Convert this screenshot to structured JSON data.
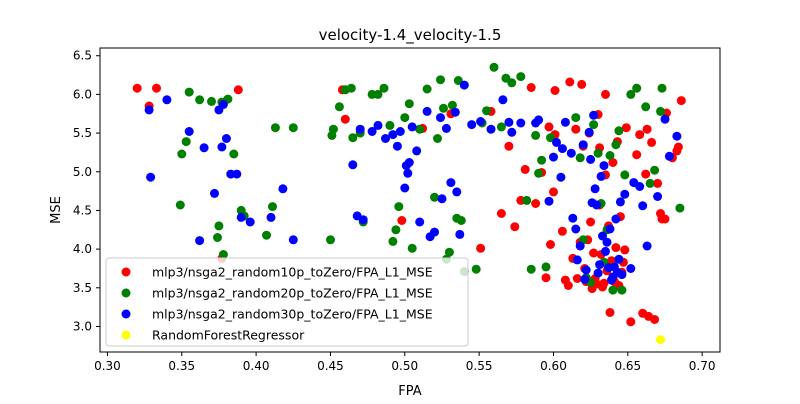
{
  "chart_data": {
    "type": "scatter",
    "title": "velocity-1.4_velocity-1.5",
    "xlabel": "FPA",
    "ylabel": "MSE",
    "xlim": [
      0.295,
      0.712
    ],
    "ylim": [
      2.67,
      6.6
    ],
    "xticks": [
      0.3,
      0.35,
      0.4,
      0.45,
      0.5,
      0.55,
      0.6,
      0.65,
      0.7
    ],
    "xtick_labels": [
      "0.30",
      "0.35",
      "0.40",
      "0.45",
      "0.50",
      "0.55",
      "0.60",
      "0.65",
      "0.70"
    ],
    "yticks": [
      3.0,
      3.5,
      4.0,
      4.5,
      5.0,
      5.5,
      6.0,
      6.5
    ],
    "ytick_labels": [
      "3.0",
      "3.5",
      "4.0",
      "4.5",
      "5.0",
      "5.5",
      "6.0",
      "6.5"
    ],
    "grid": false,
    "legend_position": "lower-left",
    "series": [
      {
        "name": "mlp3/nsga2_random10p_toZero/FPA_L1_MSE",
        "color": "#ff0000",
        "points": [
          [
            0.32,
            6.08
          ],
          [
            0.328,
            5.85
          ],
          [
            0.333,
            6.08
          ],
          [
            0.377,
            3.88
          ],
          [
            0.388,
            6.06
          ],
          [
            0.458,
            6.06
          ],
          [
            0.46,
            5.68
          ],
          [
            0.498,
            4.37
          ],
          [
            0.512,
            5.56
          ],
          [
            0.531,
            5.75
          ],
          [
            0.551,
            4.01
          ],
          [
            0.558,
            5.78
          ],
          [
            0.565,
            4.46
          ],
          [
            0.57,
            5.33
          ],
          [
            0.574,
            4.29
          ],
          [
            0.578,
            4.63
          ],
          [
            0.581,
            5.03
          ],
          [
            0.585,
            6.09
          ],
          [
            0.588,
            4.59
          ],
          [
            0.592,
            4.99
          ],
          [
            0.595,
            3.63
          ],
          [
            0.597,
            5.58
          ],
          [
            0.598,
            4.06
          ],
          [
            0.6,
            4.74
          ],
          [
            0.601,
            6.05
          ],
          [
            0.601,
            5.48
          ],
          [
            0.606,
            4.23
          ],
          [
            0.608,
            3.6
          ],
          [
            0.61,
            3.53
          ],
          [
            0.611,
            6.16
          ],
          [
            0.613,
            3.88
          ],
          [
            0.615,
            5.55
          ],
          [
            0.616,
            3.62
          ],
          [
            0.618,
            4.09
          ],
          [
            0.619,
            6.13
          ],
          [
            0.62,
            5.33
          ],
          [
            0.621,
            3.75
          ],
          [
            0.622,
            3.58
          ],
          [
            0.623,
            4.12
          ],
          [
            0.624,
            5.5
          ],
          [
            0.625,
            4.35
          ],
          [
            0.626,
            3.49
          ],
          [
            0.627,
            3.95
          ],
          [
            0.628,
            3.62
          ],
          [
            0.629,
            3.55
          ],
          [
            0.63,
            5.74
          ],
          [
            0.631,
            5.31
          ],
          [
            0.631,
            4.57
          ],
          [
            0.632,
            3.93
          ],
          [
            0.633,
            3.51
          ],
          [
            0.634,
            3.56
          ],
          [
            0.635,
            6.0
          ],
          [
            0.635,
            4.96
          ],
          [
            0.636,
            3.72
          ],
          [
            0.637,
            4.3
          ],
          [
            0.638,
            3.18
          ],
          [
            0.639,
            3.85
          ],
          [
            0.64,
            5.12
          ],
          [
            0.641,
            3.58
          ],
          [
            0.642,
            4.02
          ],
          [
            0.643,
            5.39
          ],
          [
            0.644,
            3.53
          ],
          [
            0.645,
            4.42
          ],
          [
            0.646,
            3.7
          ],
          [
            0.647,
            3.83
          ],
          [
            0.648,
            3.99
          ],
          [
            0.649,
            5.57
          ],
          [
            0.652,
            3.06
          ],
          [
            0.656,
            5.22
          ],
          [
            0.658,
            5.48
          ],
          [
            0.66,
            3.17
          ],
          [
            0.662,
            4.97
          ],
          [
            0.663,
            5.55
          ],
          [
            0.664,
            3.13
          ],
          [
            0.666,
            5.38
          ],
          [
            0.668,
            3.09
          ],
          [
            0.67,
            4.85
          ],
          [
            0.672,
            4.46
          ],
          [
            0.673,
            4.39
          ],
          [
            0.675,
            4.39
          ],
          [
            0.676,
            5.76
          ],
          [
            0.68,
            5.18
          ],
          [
            0.683,
            5.27
          ],
          [
            0.684,
            5.32
          ],
          [
            0.686,
            5.92
          ]
        ]
      },
      {
        "name": "mlp3/nsga2_random20p_toZero/FPA_L1_MSE",
        "color": "#008000",
        "points": [
          [
            0.349,
            4.57
          ],
          [
            0.35,
            5.23
          ],
          [
            0.353,
            5.39
          ],
          [
            0.355,
            6.03
          ],
          [
            0.362,
            5.93
          ],
          [
            0.37,
            5.91
          ],
          [
            0.374,
            4.15
          ],
          [
            0.375,
            4.3
          ],
          [
            0.377,
            5.9
          ],
          [
            0.378,
            3.93
          ],
          [
            0.381,
            5.94
          ],
          [
            0.385,
            5.23
          ],
          [
            0.39,
            4.5
          ],
          [
            0.392,
            4.43
          ],
          [
            0.407,
            4.18
          ],
          [
            0.411,
            4.55
          ],
          [
            0.413,
            5.57
          ],
          [
            0.425,
            5.57
          ],
          [
            0.45,
            4.12
          ],
          [
            0.451,
            5.47
          ],
          [
            0.452,
            5.55
          ],
          [
            0.456,
            5.84
          ],
          [
            0.46,
            6.06
          ],
          [
            0.464,
            6.08
          ],
          [
            0.465,
            5.44
          ],
          [
            0.47,
            5.5
          ],
          [
            0.472,
            4.35
          ],
          [
            0.478,
            6.0
          ],
          [
            0.482,
            6.0
          ],
          [
            0.486,
            6.08
          ],
          [
            0.49,
            5.6
          ],
          [
            0.492,
            4.1
          ],
          [
            0.494,
            4.25
          ],
          [
            0.496,
            4.55
          ],
          [
            0.5,
            5.7
          ],
          [
            0.503,
            5.88
          ],
          [
            0.505,
            4.01
          ],
          [
            0.51,
            5.55
          ],
          [
            0.515,
            6.07
          ],
          [
            0.52,
            4.67
          ],
          [
            0.522,
            5.43
          ],
          [
            0.524,
            6.19
          ],
          [
            0.526,
            5.82
          ],
          [
            0.528,
            3.87
          ],
          [
            0.53,
            3.96
          ],
          [
            0.532,
            5.86
          ],
          [
            0.535,
            4.4
          ],
          [
            0.536,
            6.18
          ],
          [
            0.538,
            4.37
          ],
          [
            0.54,
            3.71
          ],
          [
            0.548,
            3.74
          ],
          [
            0.552,
            5.63
          ],
          [
            0.555,
            5.79
          ],
          [
            0.56,
            6.35
          ],
          [
            0.565,
            5.58
          ],
          [
            0.568,
            6.21
          ],
          [
            0.572,
            6.15
          ],
          [
            0.578,
            6.23
          ],
          [
            0.582,
            4.63
          ],
          [
            0.585,
            3.74
          ],
          [
            0.588,
            5.47
          ],
          [
            0.59,
            4.98
          ],
          [
            0.592,
            5.15
          ],
          [
            0.595,
            3.77
          ],
          [
            0.598,
            5.44
          ],
          [
            0.615,
            5.7
          ],
          [
            0.618,
            5.18
          ],
          [
            0.62,
            4.12
          ],
          [
            0.622,
            3.63
          ],
          [
            0.625,
            3.57
          ],
          [
            0.627,
            5.61
          ],
          [
            0.63,
            5.24
          ],
          [
            0.632,
            4.59
          ],
          [
            0.634,
            3.83
          ],
          [
            0.636,
            4.25
          ],
          [
            0.638,
            5.21
          ],
          [
            0.64,
            3.47
          ],
          [
            0.642,
            5.35
          ],
          [
            0.644,
            5.53
          ],
          [
            0.646,
            3.47
          ],
          [
            0.648,
            4.96
          ],
          [
            0.652,
            6.0
          ],
          [
            0.656,
            6.08
          ],
          [
            0.662,
            5.84
          ],
          [
            0.665,
            4.85
          ],
          [
            0.668,
            5.02
          ],
          [
            0.672,
            5.78
          ],
          [
            0.673,
            6.08
          ],
          [
            0.685,
            4.53
          ]
        ]
      },
      {
        "name": "mlp3/nsga2_random30p_toZero/FPA_L1_MSE",
        "color": "#0000ff",
        "points": [
          [
            0.328,
            5.8
          ],
          [
            0.329,
            4.93
          ],
          [
            0.34,
            5.93
          ],
          [
            0.355,
            5.52
          ],
          [
            0.362,
            4.11
          ],
          [
            0.365,
            5.31
          ],
          [
            0.372,
            4.72
          ],
          [
            0.375,
            5.8
          ],
          [
            0.377,
            5.32
          ],
          [
            0.378,
            5.87
          ],
          [
            0.38,
            5.43
          ],
          [
            0.383,
            4.97
          ],
          [
            0.387,
            4.97
          ],
          [
            0.39,
            4.41
          ],
          [
            0.396,
            4.35
          ],
          [
            0.418,
            4.78
          ],
          [
            0.41,
            4.41
          ],
          [
            0.425,
            4.12
          ],
          [
            0.465,
            5.09
          ],
          [
            0.468,
            4.43
          ],
          [
            0.472,
            4.38
          ],
          [
            0.47,
            5.55
          ],
          [
            0.478,
            5.52
          ],
          [
            0.482,
            5.6
          ],
          [
            0.487,
            5.43
          ],
          [
            0.492,
            5.48
          ],
          [
            0.495,
            5.33
          ],
          [
            0.497,
            5.52
          ],
          [
            0.5,
            4.79
          ],
          [
            0.501,
            5.08
          ],
          [
            0.502,
            4.98
          ],
          [
            0.503,
            5.12
          ],
          [
            0.505,
            5.58
          ],
          [
            0.508,
            5.27
          ],
          [
            0.51,
            4.35
          ],
          [
            0.515,
            5.78
          ],
          [
            0.517,
            4.16
          ],
          [
            0.52,
            4.22
          ],
          [
            0.524,
            5.7
          ],
          [
            0.525,
            4.65
          ],
          [
            0.528,
            5.56
          ],
          [
            0.531,
            4.86
          ],
          [
            0.534,
            5.77
          ],
          [
            0.535,
            4.74
          ],
          [
            0.537,
            4.19
          ],
          [
            0.54,
            6.12
          ],
          [
            0.545,
            5.61
          ],
          [
            0.551,
            5.65
          ],
          [
            0.558,
            5.55
          ],
          [
            0.566,
            5.93
          ],
          [
            0.57,
            5.64
          ],
          [
            0.572,
            5.51
          ],
          [
            0.578,
            5.63
          ],
          [
            0.588,
            5.63
          ],
          [
            0.59,
            5.67
          ],
          [
            0.597,
            4.62
          ],
          [
            0.6,
            5.19
          ],
          [
            0.602,
            5.38
          ],
          [
            0.605,
            4.93
          ],
          [
            0.606,
            5.3
          ],
          [
            0.608,
            5.64
          ],
          [
            0.612,
            5.24
          ],
          [
            0.613,
            4.4
          ],
          [
            0.615,
            4.26
          ],
          [
            0.616,
            3.86
          ],
          [
            0.618,
            4.04
          ],
          [
            0.62,
            5.35
          ],
          [
            0.621,
            3.61
          ],
          [
            0.622,
            3.73
          ],
          [
            0.624,
            5.51
          ],
          [
            0.625,
            5.16
          ],
          [
            0.626,
            4.6
          ],
          [
            0.627,
            5.73
          ],
          [
            0.628,
            4.78
          ],
          [
            0.629,
            4.57
          ],
          [
            0.63,
            3.69
          ],
          [
            0.631,
            3.8
          ],
          [
            0.632,
            4.94
          ],
          [
            0.633,
            4.17
          ],
          [
            0.634,
            5.08
          ],
          [
            0.635,
            3.97
          ],
          [
            0.636,
            4.09
          ],
          [
            0.637,
            3.76
          ],
          [
            0.638,
            4.26
          ],
          [
            0.639,
            3.6
          ],
          [
            0.64,
            3.64
          ],
          [
            0.641,
            3.77
          ],
          [
            0.642,
            4.39
          ],
          [
            0.643,
            3.7
          ],
          [
            0.644,
            3.87
          ],
          [
            0.645,
            4.61
          ],
          [
            0.646,
            3.67
          ],
          [
            0.648,
            4.71
          ],
          [
            0.652,
            3.75
          ],
          [
            0.654,
            4.86
          ],
          [
            0.658,
            4.81
          ],
          [
            0.66,
            4.56
          ],
          [
            0.663,
            4.04
          ],
          [
            0.67,
            4.68
          ],
          [
            0.675,
            5.68
          ],
          [
            0.678,
            5.2
          ],
          [
            0.683,
            5.46
          ]
        ]
      },
      {
        "name": "RandomForestRegressor",
        "color": "#ffff00",
        "points": [
          [
            0.672,
            2.83
          ]
        ]
      }
    ]
  }
}
